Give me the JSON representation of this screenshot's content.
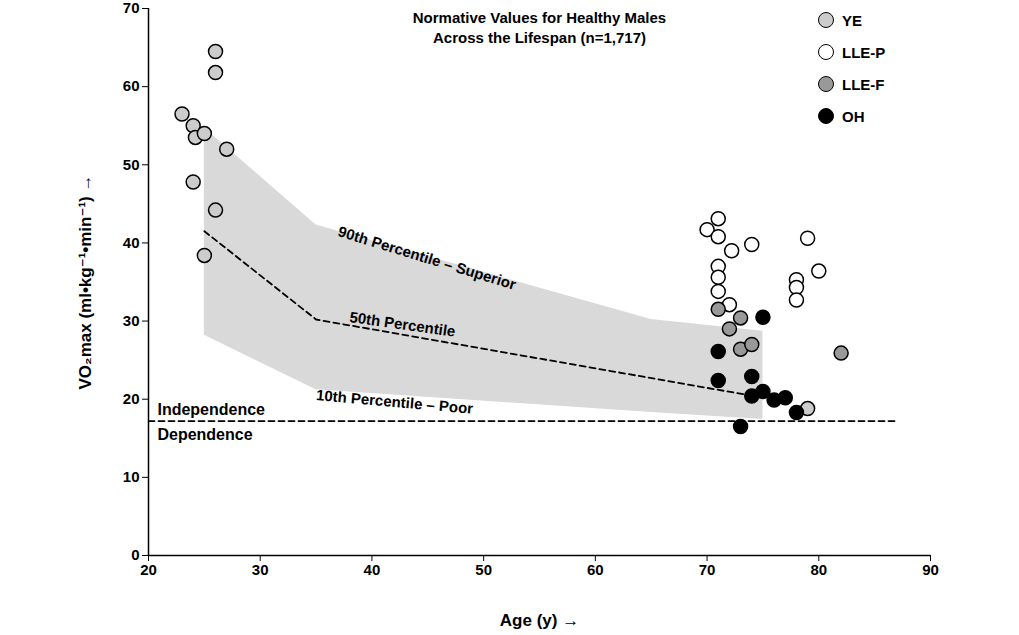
{
  "chart_data": {
    "type": "scatter",
    "title": "Normative Values for Healthy Males",
    "subtitle": "Across the Lifespan (n=1,717)",
    "x_label": "Age (y)",
    "y_label": "VO₂max (ml•kg⁻¹•min⁻¹)",
    "xlim": [
      20,
      90
    ],
    "xticks": [
      20,
      30,
      40,
      50,
      60,
      70,
      80,
      90
    ],
    "ylim": [
      0,
      70
    ],
    "yticks": [
      0,
      10,
      20,
      30,
      40,
      50,
      60,
      70
    ],
    "grid": false,
    "legend": "top-right",
    "marker": "circle",
    "series": [
      {
        "name": "YE",
        "color": "#cccccc",
        "x": [
          23,
          24,
          24.2,
          25,
          24,
          26,
          26,
          27,
          26,
          25,
          79
        ],
        "values": [
          56.5,
          55,
          53.5,
          54,
          47.8,
          64.5,
          61.8,
          52,
          44.2,
          38.4,
          18.8
        ]
      },
      {
        "name": "LLE-P",
        "color": "#ffffff",
        "x": [
          70,
          71,
          71,
          71,
          71,
          71,
          72,
          72.2,
          74,
          79,
          80,
          78,
          78,
          78
        ],
        "values": [
          41.7,
          43.1,
          40.8,
          37,
          35.6,
          33.8,
          32.1,
          39,
          39.8,
          40.6,
          36.4,
          35.3,
          34.3,
          32.7
        ]
      },
      {
        "name": "LLE-F",
        "color": "#999999",
        "x": [
          71,
          72,
          73,
          73,
          74,
          82
        ],
        "values": [
          31.5,
          29,
          30.4,
          26.4,
          27,
          25.9
        ]
      },
      {
        "name": "OH",
        "color": "#000000",
        "x": [
          71,
          75,
          71,
          74,
          74,
          75,
          76,
          77,
          78,
          73
        ],
        "values": [
          26.1,
          30.5,
          22.4,
          22.9,
          20.4,
          21,
          19.9,
          20.2,
          18.3,
          16.5
        ]
      }
    ],
    "band": {
      "color": "#d9d9d9",
      "x": [
        25,
        35,
        65,
        75
      ],
      "p90": [
        54.7,
        42.3,
        30.2,
        28.7
      ],
      "p10": [
        28.2,
        21.2,
        18.3,
        17.4
      ]
    },
    "median": {
      "line_style": "dashed",
      "x": [
        25,
        35,
        75
      ],
      "values": [
        41.5,
        30.2,
        20.2
      ]
    },
    "threshold": {
      "line_style": "dashed",
      "x": [
        20,
        87
      ],
      "value": 17.2
    },
    "annotations": [
      {
        "text": "90th Percentile – Superior",
        "x": 37,
        "y": 41.5
      },
      {
        "text": "50th Percentile",
        "x": 38,
        "y": 30.5
      },
      {
        "text": "10th Percentile – Poor",
        "x": 35,
        "y": 20.5
      },
      {
        "text": "Independence",
        "x": 20.8,
        "y": 18.6
      },
      {
        "text": "Dependence",
        "x": 20.8,
        "y": 15.4
      }
    ]
  }
}
